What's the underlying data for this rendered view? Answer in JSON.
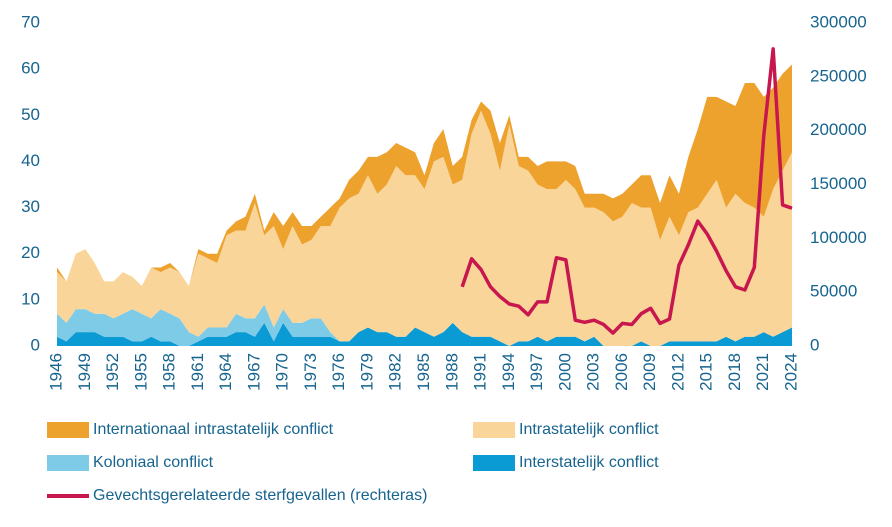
{
  "chart_data": {
    "type": "area",
    "x": [
      1946,
      1947,
      1948,
      1949,
      1950,
      1951,
      1952,
      1953,
      1954,
      1955,
      1956,
      1957,
      1958,
      1959,
      1960,
      1961,
      1962,
      1963,
      1964,
      1965,
      1966,
      1967,
      1968,
      1969,
      1970,
      1971,
      1972,
      1973,
      1974,
      1975,
      1976,
      1977,
      1978,
      1979,
      1980,
      1981,
      1982,
      1983,
      1984,
      1985,
      1986,
      1987,
      1988,
      1989,
      1990,
      1991,
      1992,
      1993,
      1994,
      1995,
      1996,
      1997,
      1998,
      1999,
      2000,
      2001,
      2002,
      2003,
      2004,
      2005,
      2006,
      2007,
      2008,
      2009,
      2010,
      2011,
      2012,
      2013,
      2014,
      2015,
      2016,
      2017,
      2018,
      2019,
      2020,
      2021,
      2022,
      2023,
      2024
    ],
    "xlim": [
      1946,
      2024
    ],
    "xticks": [
      1946,
      1949,
      1952,
      1955,
      1958,
      1961,
      1964,
      1967,
      1970,
      1973,
      1976,
      1979,
      1982,
      1985,
      1988,
      1991,
      1994,
      1997,
      2000,
      2003,
      2006,
      2009,
      2012,
      2015,
      2018,
      2021,
      2024
    ],
    "ylim": [
      0,
      70
    ],
    "yticks": [
      0,
      10,
      20,
      30,
      40,
      50,
      60,
      70
    ],
    "y2lim": [
      0,
      300000
    ],
    "y2ticks": [
      0,
      50000,
      100000,
      150000,
      200000,
      250000,
      300000
    ],
    "grid": false,
    "series": [
      {
        "name": "Internationaal intrastatelijk conflict",
        "color": "#eea22e",
        "values": [
          1,
          0,
          0,
          0,
          0,
          0,
          0,
          0,
          0,
          0,
          0,
          1,
          1,
          0,
          0,
          1,
          1,
          2,
          1,
          2,
          3,
          2,
          1,
          3,
          5,
          3,
          4,
          3,
          2,
          4,
          2,
          4,
          5,
          4,
          8,
          7,
          5,
          6,
          5,
          3,
          4,
          6,
          4,
          5,
          3,
          2,
          5,
          6,
          2,
          2,
          3,
          4,
          6,
          6,
          4,
          5,
          3,
          3,
          4,
          5,
          5,
          4,
          7,
          7,
          8,
          9,
          9,
          12,
          17,
          21,
          18,
          23,
          19,
          26,
          27,
          26,
          22,
          21,
          19
        ]
      },
      {
        "name": "Intrastatelijk conflict",
        "color": "#fad59a",
        "values": [
          9,
          9,
          12,
          13,
          11,
          7,
          8,
          9,
          7,
          6,
          11,
          8,
          10,
          10,
          10,
          18,
          15,
          14,
          20,
          18,
          19,
          25,
          15,
          22,
          13,
          21,
          17,
          17,
          20,
          23,
          29,
          31,
          30,
          33,
          30,
          32,
          37,
          35,
          33,
          31,
          38,
          38,
          30,
          33,
          44,
          49,
          44,
          37,
          48,
          38,
          37,
          33,
          33,
          32,
          34,
          32,
          29,
          28,
          29,
          27,
          28,
          31,
          29,
          30,
          23,
          27,
          23,
          28,
          29,
          32,
          35,
          28,
          32,
          29,
          28,
          25,
          32,
          35,
          38
        ]
      },
      {
        "name": "Koloniaal conflict",
        "color": "#7ecbe8",
        "values": [
          5,
          4,
          5,
          5,
          4,
          5,
          4,
          5,
          7,
          6,
          4,
          7,
          6,
          6,
          3,
          1,
          2,
          2,
          2,
          4,
          3,
          4,
          4,
          3,
          3,
          3,
          3,
          4,
          4,
          1,
          0,
          0,
          0,
          0,
          0,
          0,
          0,
          0,
          0,
          0,
          0,
          0,
          0,
          0,
          0,
          0,
          0,
          0,
          0,
          0,
          0,
          0,
          0,
          0,
          0,
          0,
          0,
          0,
          0,
          0,
          0,
          0,
          0,
          0,
          0,
          0,
          0,
          0,
          0,
          0,
          0,
          0,
          0,
          0,
          0,
          0,
          0,
          0,
          0
        ]
      },
      {
        "name": "Interstatelijk conflict",
        "color": "#0a9ad4",
        "values": [
          2,
          1,
          3,
          3,
          3,
          2,
          2,
          2,
          1,
          1,
          2,
          1,
          1,
          0,
          0,
          1,
          2,
          2,
          2,
          3,
          3,
          2,
          5,
          1,
          5,
          2,
          2,
          2,
          2,
          2,
          1,
          1,
          3,
          4,
          3,
          3,
          2,
          2,
          4,
          3,
          2,
          3,
          5,
          3,
          2,
          2,
          2,
          1,
          0,
          1,
          1,
          2,
          1,
          2,
          2,
          2,
          1,
          2,
          0,
          0,
          0,
          0,
          1,
          0,
          0,
          1,
          1,
          1,
          1,
          1,
          1,
          2,
          1,
          2,
          2,
          3,
          2,
          3,
          4
        ]
      },
      {
        "name": "Gevechtsgerelateerde sterfgevallen (rechteras)",
        "color": "#c8174e",
        "axis": "y2",
        "values": [
          null,
          null,
          null,
          null,
          null,
          null,
          null,
          null,
          null,
          null,
          null,
          null,
          null,
          null,
          null,
          null,
          null,
          null,
          null,
          null,
          null,
          null,
          null,
          null,
          null,
          null,
          null,
          null,
          null,
          null,
          null,
          null,
          null,
          null,
          null,
          null,
          null,
          null,
          null,
          null,
          null,
          null,
          null,
          55000,
          81000,
          71000,
          55000,
          46000,
          39000,
          37000,
          29000,
          41000,
          41000,
          82000,
          80000,
          24000,
          22000,
          24000,
          20000,
          12000,
          21000,
          20000,
          30000,
          35000,
          21000,
          25000,
          75000,
          94000,
          116000,
          104000,
          88000,
          70000,
          55000,
          52000,
          73000,
          195000,
          276000,
          131000,
          128000
        ]
      }
    ]
  }
}
